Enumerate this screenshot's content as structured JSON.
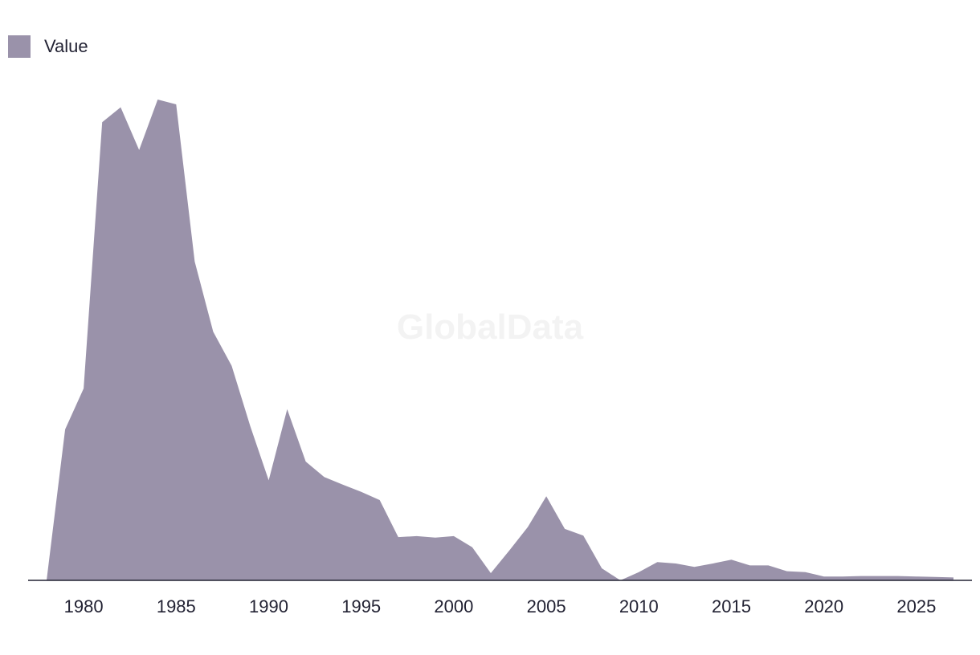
{
  "legend": {
    "label": "Value"
  },
  "watermark": "GlobalData",
  "chart_data": {
    "type": "area",
    "title": "",
    "xlabel": "",
    "ylabel": "",
    "x": [
      1978,
      1979,
      1980,
      1981,
      1982,
      1983,
      1984,
      1985,
      1986,
      1987,
      1988,
      1989,
      1990,
      1991,
      1992,
      1993,
      1994,
      1995,
      1996,
      1997,
      1998,
      1999,
      2000,
      2001,
      2002,
      2003,
      2004,
      2005,
      2006,
      2007,
      2008,
      2009,
      2010,
      2011,
      2012,
      2013,
      2014,
      2015,
      2016,
      2017,
      2018,
      2019,
      2020,
      2021,
      2022,
      2023,
      2024,
      2025,
      2026,
      2027
    ],
    "series": [
      {
        "name": "Value",
        "values": [
          0,
          31.4,
          39.9,
          95.3,
          98.4,
          89.5,
          100,
          99,
          66.3,
          51.7,
          44.6,
          32.1,
          20.8,
          35.6,
          24.7,
          21.5,
          19.9,
          18.4,
          16.7,
          9.0,
          9.2,
          8.9,
          9.2,
          6.9,
          1.5,
          6.2,
          11.1,
          17.5,
          10.7,
          9.3,
          2.5,
          0,
          1.7,
          3.8,
          3.5,
          2.8,
          3.5,
          4.3,
          3.1,
          3.1,
          1.9,
          1.7,
          0.8,
          0.8,
          0.9,
          0.9,
          0.9,
          0.8,
          0.7,
          0.6
        ],
        "color": "#9a92aa"
      }
    ],
    "xticks": [
      1980,
      1985,
      1990,
      1995,
      2000,
      2005,
      2010,
      2015,
      2020,
      2025
    ],
    "xlim": [
      1977,
      2028
    ],
    "ylim": [
      0,
      100
    ],
    "grid": false,
    "legend_position": "top-left"
  }
}
